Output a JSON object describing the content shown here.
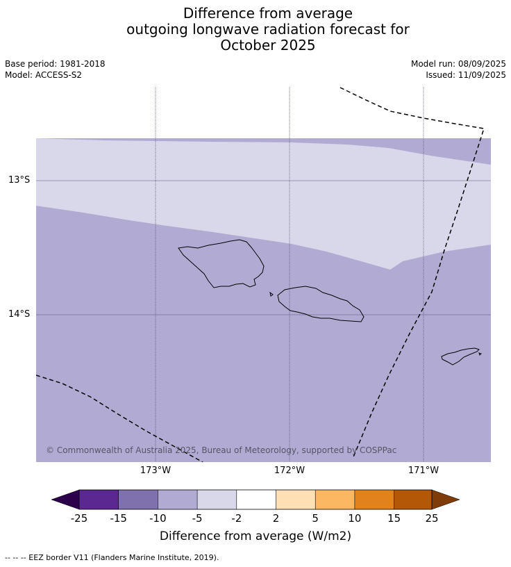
{
  "title": {
    "line1": "Difference from average",
    "line2": "outgoing longwave radiation forecast for",
    "line3": "October 2025"
  },
  "meta": {
    "base_period": "Base period: 1981-2018",
    "model": "Model: ACCESS-S2",
    "model_run": "Model run: 08/09/2025",
    "issued": "Issued: 11/09/2025"
  },
  "map": {
    "latitude_labels": [
      "13°S",
      "14°S"
    ],
    "longitude_labels": [
      "173°W",
      "172°W",
      "171°W"
    ],
    "copyright": "© Commonwealth of Australia 2025, Bureau of Meteorology, supported by COSPPac",
    "fill_colors": {
      "band_-5_to_-2": "#d8d8ea",
      "band_-10_to_-5": "#b1abd3",
      "land_outline": "#000000",
      "eez_border": "#000000",
      "graticule": "#555577"
    },
    "features": [
      "Upolu-island",
      "Savaii-island",
      "Tutuila-island",
      "EEZ-border"
    ]
  },
  "colorbar": {
    "tick_labels": [
      "-25",
      "-15",
      "-10",
      "-5",
      "-2",
      "2",
      "5",
      "10",
      "15",
      "25"
    ],
    "segment_colors": [
      "#5b2790",
      "#7f71ad",
      "#b1abd3",
      "#d8d8ea",
      "#ffffff",
      "#fee0b4",
      "#fbb762",
      "#e2821b",
      "#b35806"
    ],
    "under_color": "#2d004b",
    "over_color": "#7f3b08",
    "label": "Difference from average (W/m2)"
  },
  "footnote": "--  --  -- EEZ border V11 (Flanders Marine Institute, 2019)."
}
